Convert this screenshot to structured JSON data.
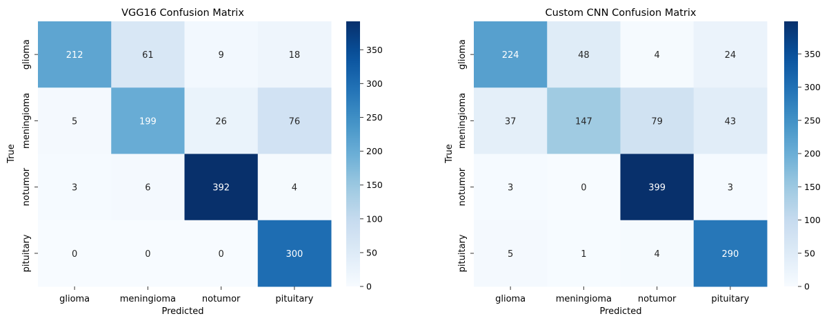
{
  "chart_data": [
    {
      "type": "heatmap",
      "title": "VGG16 Confusion Matrix",
      "xlabel": "Predicted",
      "ylabel": "True",
      "x_categories": [
        "glioma",
        "meningioma",
        "notumor",
        "pituitary"
      ],
      "y_categories": [
        "glioma",
        "meningioma",
        "notumor",
        "pituitary"
      ],
      "values": [
        [
          212,
          61,
          9,
          18
        ],
        [
          5,
          199,
          26,
          76
        ],
        [
          3,
          6,
          392,
          4
        ],
        [
          0,
          0,
          0,
          300
        ]
      ],
      "colormap": "Blues",
      "colorbar": {
        "min": 0,
        "max": 392,
        "ticks": [
          "0",
          "50",
          "100",
          "150",
          "200",
          "250",
          "300",
          "350"
        ]
      }
    },
    {
      "type": "heatmap",
      "title": "Custom CNN Confusion Matrix",
      "xlabel": "Predicted",
      "ylabel": "True",
      "x_categories": [
        "glioma",
        "meningioma",
        "notumor",
        "pituitary"
      ],
      "y_categories": [
        "glioma",
        "meningioma",
        "notumor",
        "pituitary"
      ],
      "values": [
        [
          224,
          48,
          4,
          24
        ],
        [
          37,
          147,
          79,
          43
        ],
        [
          3,
          0,
          399,
          3
        ],
        [
          5,
          1,
          4,
          290
        ]
      ],
      "colormap": "Blues",
      "colorbar": {
        "min": 0,
        "max": 399,
        "ticks": [
          "0",
          "50",
          "100",
          "150",
          "200",
          "250",
          "300",
          "350"
        ]
      }
    }
  ],
  "colors": {
    "text_dark": "#262626",
    "text_light": "#ffffff",
    "axis": "#333333"
  }
}
